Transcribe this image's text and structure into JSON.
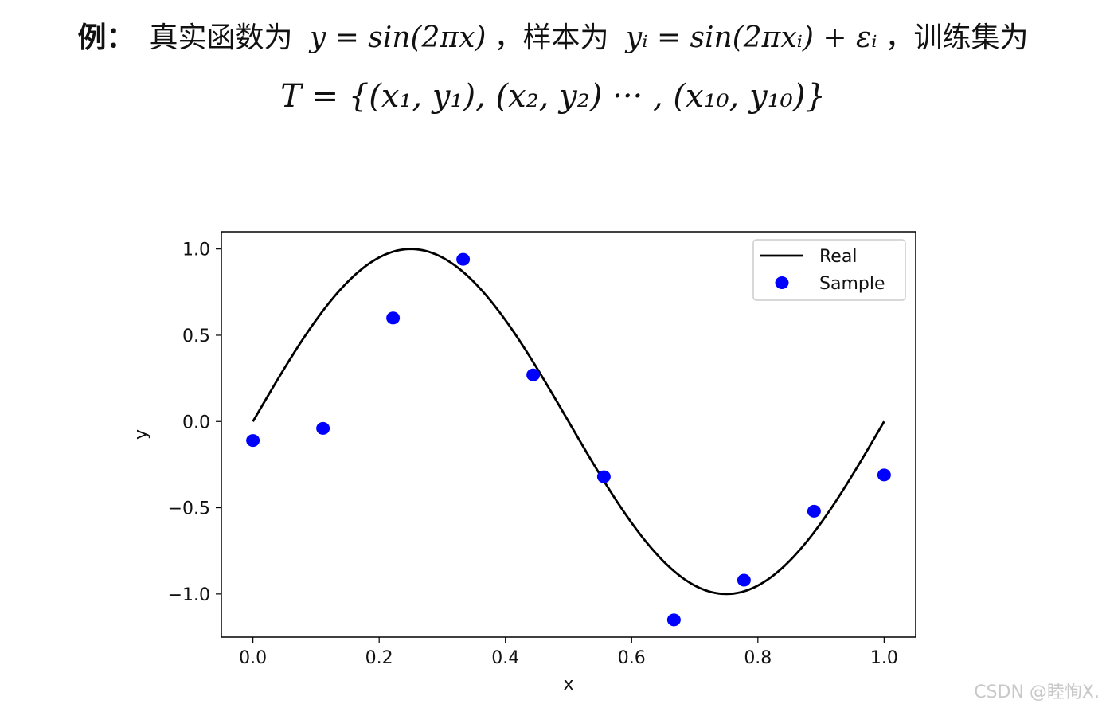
{
  "header": {
    "example_label": "例：",
    "desc_1": "真实函数为",
    "formula_true": "y = sin(2πx)",
    "desc_2": "，样本为",
    "formula_sample": "yᵢ = sin(2πxᵢ) + εᵢ",
    "desc_3": "，训练集为",
    "training_set": "T = {(x₁, y₁), (x₂, y₂) ··· , (x₁₀, y₁₀)}"
  },
  "chart_data": {
    "type": "line",
    "title": "",
    "xlabel": "x",
    "ylabel": "y",
    "xlim": [
      -0.05,
      1.05
    ],
    "ylim": [
      -1.25,
      1.1
    ],
    "xticks": [
      0.0,
      0.2,
      0.4,
      0.6,
      0.8,
      1.0
    ],
    "xtick_labels": [
      "0.0",
      "0.2",
      "0.4",
      "0.6",
      "0.8",
      "1.0"
    ],
    "yticks": [
      1.0,
      0.5,
      0.0,
      -0.5,
      -1.0
    ],
    "ytick_labels": [
      "1.0",
      "0.5",
      "0.0",
      "−0.5",
      "−1.0"
    ],
    "grid": false,
    "legend_position": "top-right",
    "series": [
      {
        "name": "Real",
        "kind": "line",
        "color": "#000000",
        "function": "sin(2πx)",
        "x_range": [
          0,
          1
        ]
      },
      {
        "name": "Sample",
        "kind": "scatter",
        "color": "#0000ff",
        "x": [
          0.0,
          0.111,
          0.222,
          0.333,
          0.444,
          0.556,
          0.667,
          0.778,
          0.889,
          1.0
        ],
        "y": [
          -0.11,
          -0.04,
          0.6,
          0.94,
          0.27,
          -0.32,
          -1.15,
          -0.92,
          -0.52,
          -0.31
        ]
      }
    ]
  },
  "watermark": "CSDN @睦恂X."
}
